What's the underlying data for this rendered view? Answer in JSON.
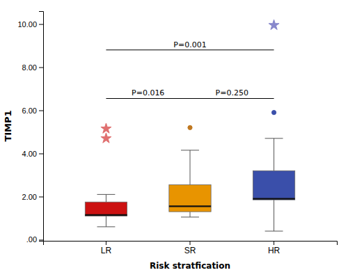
{
  "chart_data": {
    "type": "box",
    "xlabel": "Risk stratfication",
    "ylabel": "TIMP1",
    "categories": [
      "LR",
      "SR",
      "HR"
    ],
    "colors": [
      "#cc1111",
      "#e89400",
      "#3a4faa"
    ],
    "boxes": [
      {
        "q1": 1.1,
        "median": 1.15,
        "q3": 1.75,
        "whislo": 0.6,
        "whishi": 2.1,
        "fliers": [
          {
            "marker": "star",
            "color": "#e07070",
            "values": [
              5.15,
              4.7
            ]
          }
        ]
      },
      {
        "q1": 1.3,
        "median": 1.55,
        "q3": 2.55,
        "whislo": 1.05,
        "whishi": 4.15,
        "fliers": [
          {
            "marker": "circle",
            "color": "#c07820",
            "values": [
              5.2
            ]
          }
        ]
      },
      {
        "q1": 1.85,
        "median": 1.9,
        "q3": 3.2,
        "whislo": 0.4,
        "whishi": 4.7,
        "fliers": [
          {
            "marker": "circle",
            "color": "#3a4faa",
            "values": [
              5.9
            ]
          },
          {
            "marker": "star",
            "color": "#8888cc",
            "values": [
              9.95
            ]
          }
        ]
      }
    ],
    "annotations": [
      {
        "text": "P=0.016",
        "from": "LR",
        "to": "SR",
        "y": 6.55
      },
      {
        "text": "P=0.250",
        "from": "SR",
        "to": "HR",
        "y": 6.55
      },
      {
        "text": "P=0.001",
        "from": "LR",
        "to": "HR",
        "y": 8.8
      }
    ],
    "ylim": [
      -0.05,
      10.6
    ],
    "yticks": [
      {
        "value": 0.0,
        "label": ".00"
      },
      {
        "value": 2.0,
        "label": "2.00"
      },
      {
        "value": 4.0,
        "label": "4.00"
      },
      {
        "value": 6.0,
        "label": "6.00"
      },
      {
        "value": 8.0,
        "label": "8.00"
      },
      {
        "value": 10.0,
        "label": "10.00"
      }
    ]
  }
}
